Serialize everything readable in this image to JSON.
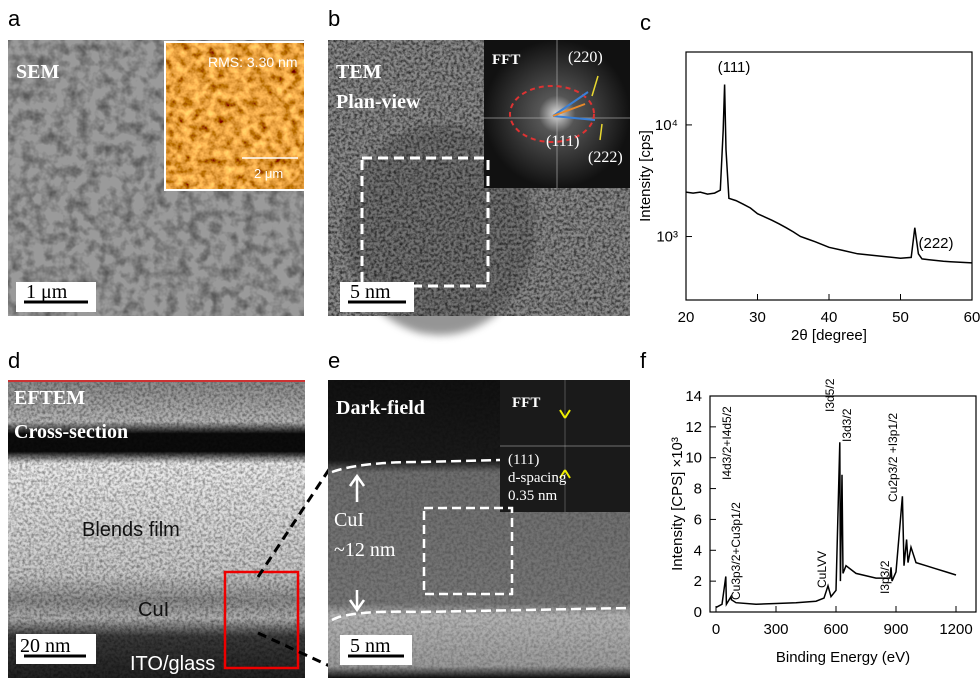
{
  "panels": [
    {
      "label": "a",
      "texts": [
        "SEM",
        "RMS: 3.30 nm",
        "2 μm",
        "1 μm"
      ]
    },
    {
      "label": "b",
      "texts": [
        "TEM",
        "Plan-view",
        "FFT",
        "(220)",
        "(111)",
        "(222)",
        "5 nm"
      ]
    },
    {
      "label": "c"
    },
    {
      "label": "d",
      "texts": [
        "EFTEM",
        "Cross-section",
        "Blends film",
        "CuI",
        "20 nm",
        "ITO/glass"
      ]
    },
    {
      "label": "e",
      "texts": [
        "Dark-field",
        "FFT",
        "(111)",
        "d-spacing",
        "0.35 nm",
        "CuI",
        "~12 nm",
        "5 nm"
      ]
    },
    {
      "label": "f"
    }
  ],
  "chart_data": [
    {
      "type": "line",
      "x_label": "2θ [degree]",
      "y_label": "Intensity [cps]",
      "log_y": true,
      "color": "#000000",
      "annotations": [
        "(111)",
        "(222)"
      ],
      "x": [
        20,
        21,
        22,
        23,
        24,
        24.8,
        25.2,
        25.4,
        25.6,
        26,
        27,
        28,
        29,
        30,
        31,
        32,
        33,
        34,
        35,
        36,
        37,
        38,
        39,
        40,
        42,
        44,
        46,
        48,
        50,
        51.5,
        52,
        52.5,
        53,
        54,
        55,
        56,
        57,
        58,
        59,
        60
      ],
      "values": [
        2500,
        2450,
        2500,
        2400,
        2450,
        2600,
        9000,
        23000,
        6000,
        2200,
        2100,
        1950,
        1800,
        1600,
        1500,
        1400,
        1300,
        1200,
        1100,
        1000,
        950,
        900,
        850,
        800,
        750,
        700,
        680,
        660,
        640,
        650,
        1200,
        700,
        630,
        620,
        610,
        600,
        595,
        590,
        585,
        580
      ],
      "xlim": [
        20,
        60
      ],
      "xticks": [
        20,
        30,
        40,
        50,
        60
      ],
      "ylim": [
        270,
        45000
      ],
      "yticks": [
        {
          "value": 1000,
          "label": "10³"
        },
        {
          "value": 10000,
          "label": "10⁴"
        }
      ]
    },
    {
      "type": "line",
      "x_label": "Binding Energy (eV)",
      "y_label": "Intensity [CPS] ×10³",
      "color": "#000000",
      "annotations": [
        "I4d3/2+I4d5/2",
        "Cu3p3/2+Cu3p1/2",
        "CuLVV",
        "I3d5/2",
        "I3d3/2",
        "I3p3/2",
        "Cu2p3/2 +I3p1/2"
      ],
      "x": [
        0,
        30,
        49,
        52,
        75,
        77,
        100,
        200,
        300,
        400,
        500,
        540,
        560,
        575,
        600,
        619,
        622,
        630,
        635,
        650,
        700,
        800,
        870,
        875,
        880,
        900,
        932,
        940,
        953,
        960,
        975,
        1000,
        1050,
        1100,
        1150,
        1200
      ],
      "values": [
        0.3,
        0.5,
        2.3,
        0.5,
        1.0,
        0.8,
        0.6,
        0.5,
        0.55,
        0.6,
        0.7,
        0.9,
        1.7,
        1.0,
        1.4,
        11.0,
        2.0,
        8.9,
        2.5,
        3.0,
        2.5,
        2.2,
        2.2,
        2.9,
        2.0,
        2.6,
        7.5,
        3.0,
        4.7,
        3.2,
        4.2,
        3.2,
        3.0,
        2.8,
        2.6,
        2.4
      ],
      "xlim": [
        -30,
        1300
      ],
      "xticks": [
        0,
        300,
        600,
        900,
        1200
      ],
      "ylim": [
        0,
        14
      ],
      "yticks": [
        0,
        2,
        4,
        6,
        8,
        10,
        12,
        14
      ]
    }
  ]
}
